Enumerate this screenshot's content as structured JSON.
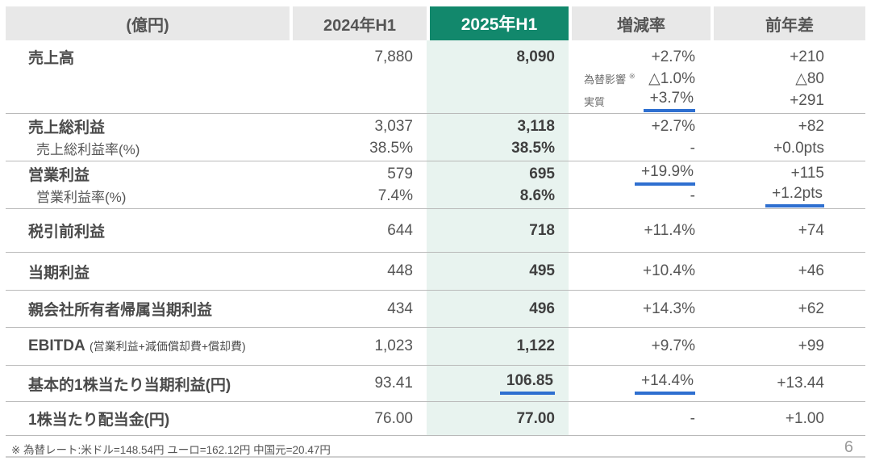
{
  "colors": {
    "accent_green": "#12886C",
    "mint_column": "#E8F3EF",
    "header_gray": "#E8E8E8",
    "underline_blue": "#2E6FD0"
  },
  "header": {
    "unit": "(億円)",
    "col_2024": "2024年H1",
    "col_2025": "2025年H1",
    "col_change": "増減率",
    "col_diff": "前年差"
  },
  "sales": {
    "label": "売上高",
    "v2024": "7,880",
    "v2025": "8,090",
    "change": "+2.7%",
    "diff": "+210",
    "fx_label": "為替影響",
    "fx_mark": "※",
    "fx_change": "△1.0%",
    "fx_diff": "△80",
    "real_label": "実質",
    "real_change": "+3.7%",
    "real_diff": "+291"
  },
  "gross": {
    "label": "売上総利益",
    "v2024": "3,037",
    "v2025": "3,118",
    "change": "+2.7%",
    "diff": "+82",
    "rate_label": "売上総利益率(%)",
    "rate2024": "38.5%",
    "rate2025": "38.5%",
    "rate_change": "-",
    "rate_diff": "+0.0pts"
  },
  "operating": {
    "label": "営業利益",
    "v2024": "579",
    "v2025": "695",
    "change": "+19.9%",
    "diff": "+115",
    "rate_label": "営業利益率(%)",
    "rate2024": "7.4%",
    "rate2025": "8.6%",
    "rate_change": "-",
    "rate_diff": "+1.2pts"
  },
  "pretax": {
    "label": "税引前利益",
    "v2024": "644",
    "v2025": "718",
    "change": "+11.4%",
    "diff": "+74"
  },
  "net": {
    "label": "当期利益",
    "v2024": "448",
    "v2025": "495",
    "change": "+10.4%",
    "diff": "+46"
  },
  "parent": {
    "label": "親会社所有者帰属当期利益",
    "v2024": "434",
    "v2025": "496",
    "change": "+14.3%",
    "diff": "+62"
  },
  "ebitda": {
    "label": "EBITDA",
    "note": "(営業利益+減価償却費+償却費)",
    "v2024": "1,023",
    "v2025": "1,122",
    "change": "+9.7%",
    "diff": "+99"
  },
  "eps": {
    "label": "基本的1株当たり当期利益(円)",
    "v2024": "93.41",
    "v2025": "106.85",
    "change": "+14.4%",
    "diff": "+13.44"
  },
  "dividend": {
    "label": "1株当たり配当金(円)",
    "v2024": "76.00",
    "v2025": "77.00",
    "change": "-",
    "diff": "+1.00"
  },
  "footer": {
    "note": "※ 為替レート:米ドル=148.54円  ユーロ=162.12円  中国元=20.47円",
    "page": "6"
  }
}
